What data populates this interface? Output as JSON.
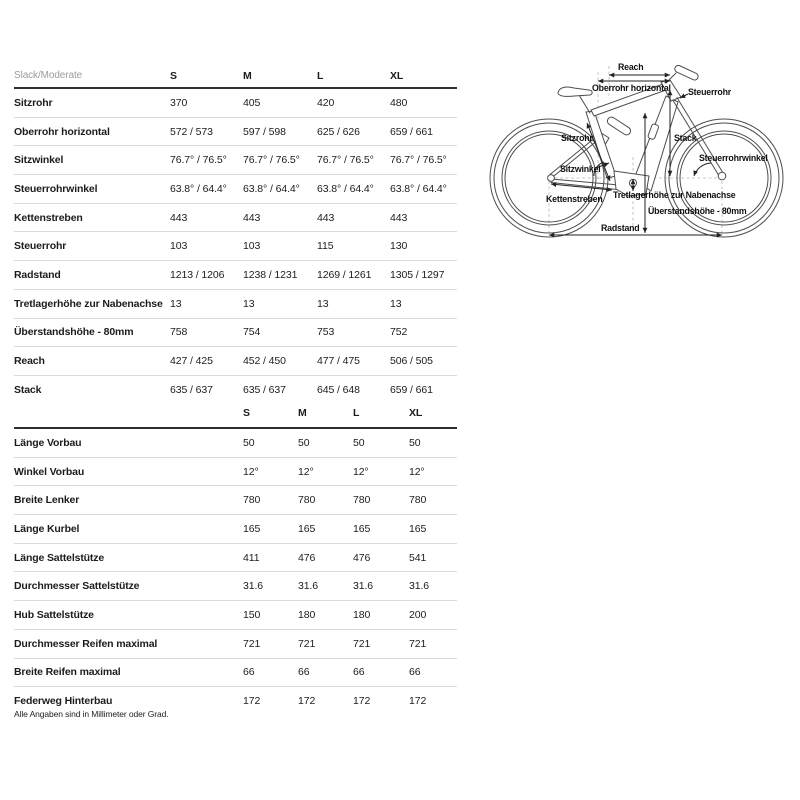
{
  "geometry_table": {
    "header_label": "Slack/Moderate",
    "columns": [
      "S",
      "M",
      "L",
      "XL"
    ],
    "rows": [
      {
        "label": "Sitzrohr",
        "values": [
          "370",
          "405",
          "420",
          "480"
        ]
      },
      {
        "label": "Oberrohr horizontal",
        "values": [
          "572 / 573",
          "597 / 598",
          "625 / 626",
          "659 / 661"
        ]
      },
      {
        "label": "Sitzwinkel",
        "values": [
          "76.7° / 76.5°",
          "76.7° / 76.5°",
          "76.7° / 76.5°",
          "76.7° / 76.5°"
        ]
      },
      {
        "label": "Steuerrohrwinkel",
        "values": [
          "63.8° / 64.4°",
          "63.8° / 64.4°",
          "63.8° / 64.4°",
          "63.8° / 64.4°"
        ]
      },
      {
        "label": "Kettenstreben",
        "values": [
          "443",
          "443",
          "443",
          "443"
        ]
      },
      {
        "label": "Steuerrohr",
        "values": [
          "103",
          "103",
          "115",
          "130"
        ]
      },
      {
        "label": "Radstand",
        "values": [
          "1213 / 1206",
          "1238 / 1231",
          "1269 / 1261",
          "1305 / 1297"
        ]
      },
      {
        "label": "Tretlagerhöhe zur Nabenachse",
        "values": [
          "13",
          "13",
          "13",
          "13"
        ]
      },
      {
        "label": "Überstandshöhe - 80mm",
        "values": [
          "758",
          "754",
          "753",
          "752"
        ]
      },
      {
        "label": "Reach",
        "values": [
          "427 / 425",
          "452 / 450",
          "477 / 475",
          "506 / 505"
        ]
      },
      {
        "label": "Stack",
        "values": [
          "635 / 637",
          "635 / 637",
          "645 / 648",
          "659 / 661"
        ]
      }
    ]
  },
  "components_table": {
    "columns": [
      "S",
      "M",
      "L",
      "XL"
    ],
    "rows": [
      {
        "label": "Länge Vorbau",
        "values": [
          "50",
          "50",
          "50",
          "50"
        ]
      },
      {
        "label": "Winkel Vorbau",
        "values": [
          "12°",
          "12°",
          "12°",
          "12°"
        ]
      },
      {
        "label": "Breite Lenker",
        "values": [
          "780",
          "780",
          "780",
          "780"
        ]
      },
      {
        "label": "Länge Kurbel",
        "values": [
          "165",
          "165",
          "165",
          "165"
        ]
      },
      {
        "label": "Länge Sattelstütze",
        "values": [
          "411",
          "476",
          "476",
          "541"
        ]
      },
      {
        "label": "Durchmesser Sattelstütze",
        "values": [
          "31.6",
          "31.6",
          "31.6",
          "31.6"
        ]
      },
      {
        "label": "Hub Sattelstütze",
        "values": [
          "150",
          "180",
          "180",
          "200"
        ]
      },
      {
        "label": "Durchmesser Reifen maximal",
        "values": [
          "721",
          "721",
          "721",
          "721"
        ]
      },
      {
        "label": "Breite Reifen maximal",
        "values": [
          "66",
          "66",
          "66",
          "66"
        ]
      },
      {
        "label": "Federweg Hinterbau",
        "values": [
          "172",
          "172",
          "172",
          "172"
        ]
      }
    ]
  },
  "diagram": {
    "labels": {
      "reach": "Reach",
      "oberrohr": "Oberrohr horizontal",
      "steuerrohr": "Steuerrohr",
      "sitzrohr": "Sitzrohr",
      "sitzwinkel": "Sitzwinkel",
      "stack": "Stack",
      "steuerrohrwinkel": "Steuerrohrwinkel",
      "kettenstreben": "Kettenstreben",
      "tretlagerhoehe": "Tretlagerhöhe zur Nabenachse",
      "ueberstandshoehe": "Überstandshöhe - 80mm",
      "radstand": "Radstand"
    }
  },
  "footnote": "Alle Angaben sind in Millimeter oder Grad.",
  "colors": {
    "text": "#1c1c1c",
    "muted_header": "#9c9c9c",
    "line_art": "#4d4d4d",
    "separator": "#dadada"
  }
}
